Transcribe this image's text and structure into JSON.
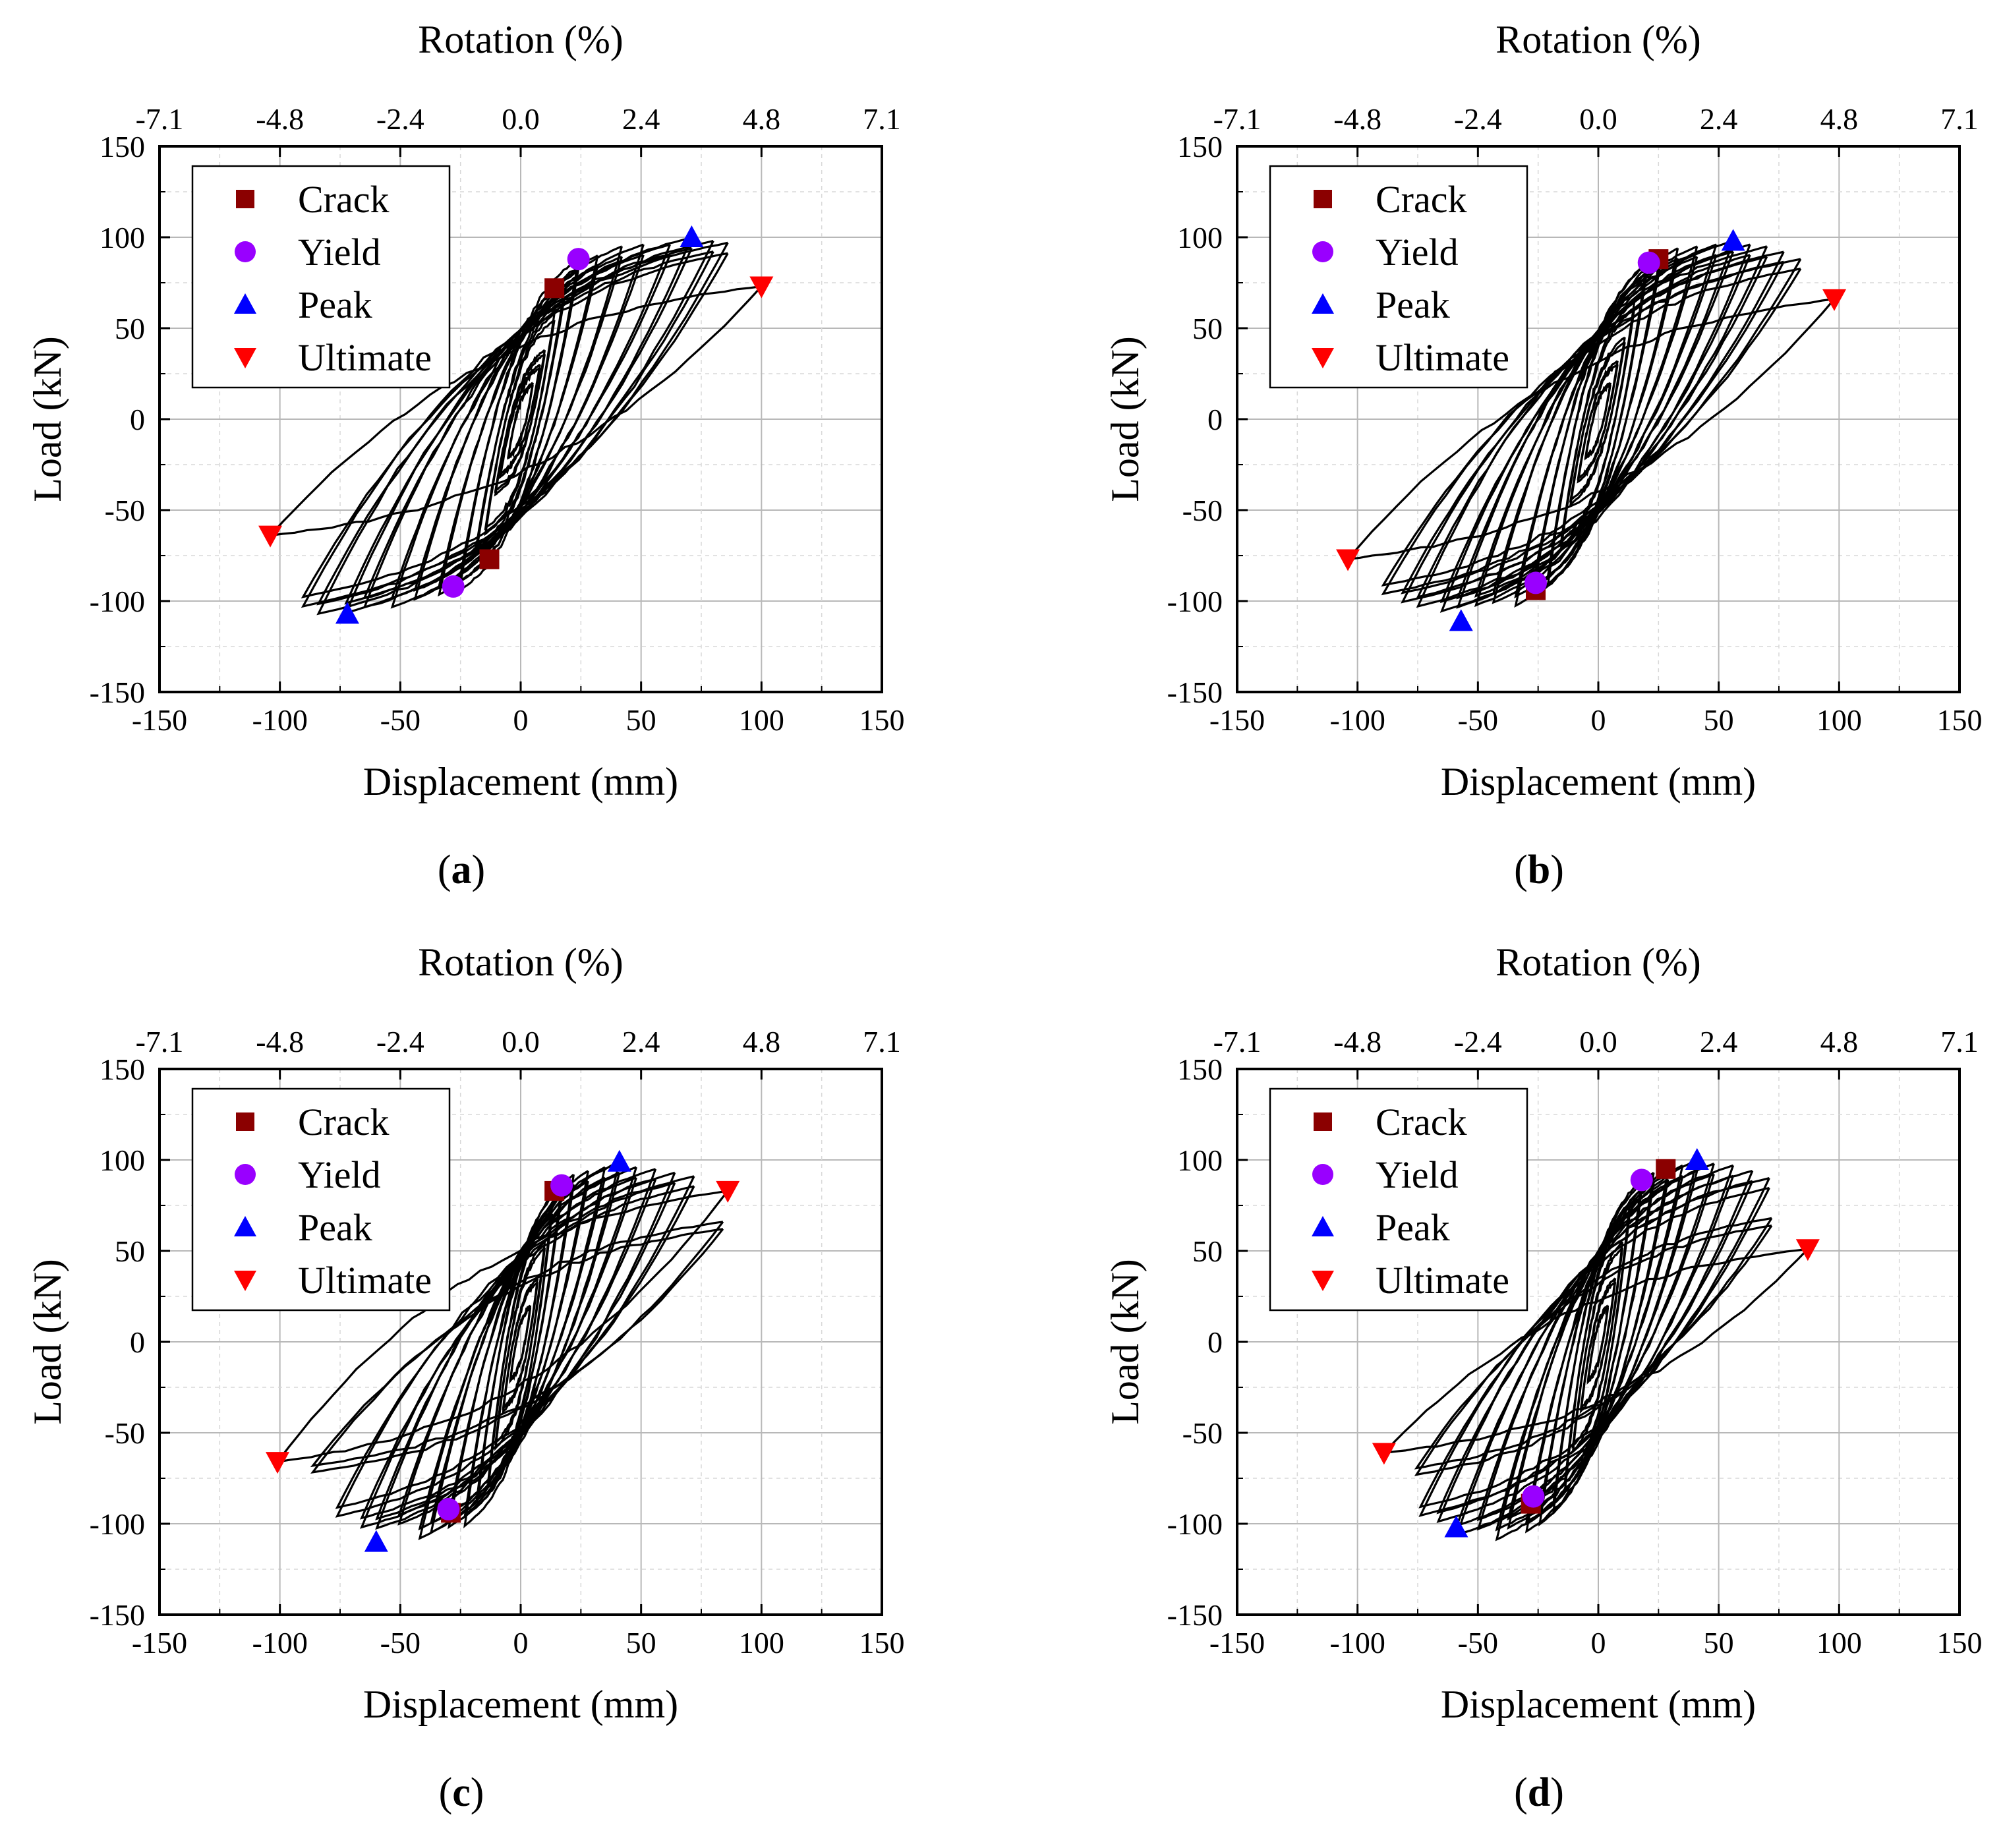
{
  "figure": {
    "panels": [
      {
        "id": "a",
        "label_open": "(",
        "label_letter": "a",
        "label_close": ")"
      },
      {
        "id": "b",
        "label_open": "(",
        "label_letter": "b",
        "label_close": ")"
      },
      {
        "id": "c",
        "label_open": "(",
        "label_letter": "c",
        "label_close": ")"
      },
      {
        "id": "d",
        "label_open": "(",
        "label_letter": "d",
        "label_close": ")"
      }
    ]
  },
  "chart_data": [
    {
      "type": "line",
      "panel": "a",
      "xlabel": "Displacement (mm)",
      "ylabel": "Load (kN)",
      "x2label": "Rotation (%)",
      "xlim": [
        -150,
        150
      ],
      "ylim": [
        -150,
        150
      ],
      "xticks": [
        "-150",
        "-100",
        "-50",
        "0",
        "50",
        "100",
        "150"
      ],
      "yticks": [
        "150",
        "100",
        "50",
        "0",
        "-50",
        "-100",
        "-150"
      ],
      "x2ticks": [
        "-7.1",
        "-4.8",
        "-2.4",
        "0.0",
        "2.4",
        "4.8",
        "7.1"
      ],
      "legend": [
        "Crack",
        "Yield",
        "Peak",
        "Ultimate"
      ],
      "colors": {
        "crack": "#8b0000",
        "yield": "#9900ff",
        "peak": "#0000ff",
        "ultimate": "#ff0000",
        "curve": "#000000"
      },
      "markers": {
        "crack": [
          [
            14,
            72
          ],
          [
            -13,
            -77
          ]
        ],
        "yield": [
          [
            24,
            88
          ],
          [
            -28,
            -92
          ]
        ],
        "peak": [
          [
            71,
            100
          ],
          [
            -72,
            -107
          ]
        ],
        "ultimate": [
          [
            100,
            73
          ],
          [
            -104,
            -64
          ]
        ]
      },
      "amplitudes": [
        [
          5,
          20
        ],
        [
          8,
          30
        ],
        [
          10,
          38
        ],
        [
          14,
          58
        ],
        [
          18,
          70
        ],
        [
          24,
          88
        ],
        [
          32,
          90
        ],
        [
          42,
          95
        ],
        [
          51,
          96
        ],
        [
          62,
          96
        ],
        [
          71,
          100
        ],
        [
          80,
          98
        ],
        [
          86,
          97
        ]
      ],
      "last_cycle": [
        [
          100,
          73
        ],
        [
          -104,
          -64
        ]
      ]
    },
    {
      "type": "line",
      "panel": "b",
      "xlabel": "Displacement (mm)",
      "ylabel": "Load (kN)",
      "x2label": "Rotation (%)",
      "xlim": [
        -150,
        150
      ],
      "ylim": [
        -150,
        150
      ],
      "xticks": [
        "-150",
        "-100",
        "-50",
        "0",
        "50",
        "100",
        "150"
      ],
      "yticks": [
        "150",
        "100",
        "50",
        "0",
        "-50",
        "-100",
        "-150"
      ],
      "x2ticks": [
        "-7.1",
        "-4.8",
        "-2.4",
        "0.0",
        "2.4",
        "4.8",
        "7.1"
      ],
      "legend": [
        "Crack",
        "Yield",
        "Peak",
        "Ultimate"
      ],
      "colors": {
        "crack": "#8b0000",
        "yield": "#9900ff",
        "peak": "#0000ff",
        "ultimate": "#ff0000",
        "curve": "#000000"
      },
      "markers": {
        "crack": [
          [
            25,
            88
          ],
          [
            -26,
            -94
          ]
        ],
        "yield": [
          [
            21,
            86
          ],
          [
            -26,
            -90
          ]
        ],
        "peak": [
          [
            56,
            98
          ],
          [
            -57,
            -111
          ]
        ],
        "ultimate": [
          [
            98,
            66
          ],
          [
            -104,
            -77
          ]
        ]
      },
      "amplitudes": [
        [
          5,
          20
        ],
        [
          8,
          32
        ],
        [
          11,
          45
        ],
        [
          15,
          65
        ],
        [
          20,
          85
        ],
        [
          26,
          92
        ],
        [
          33,
          94
        ],
        [
          41,
          95
        ],
        [
          49,
          96
        ],
        [
          56,
          98
        ],
        [
          63,
          96
        ],
        [
          70,
          95
        ],
        [
          77,
          92
        ],
        [
          84,
          88
        ]
      ],
      "last_cycle": [
        [
          98,
          66
        ],
        [
          -104,
          -77
        ]
      ]
    },
    {
      "type": "line",
      "panel": "c",
      "xlabel": "Displacement (mm)",
      "ylabel": "Load (kN)",
      "x2label": "Rotation (%)",
      "xlim": [
        -150,
        150
      ],
      "ylim": [
        -150,
        150
      ],
      "xticks": [
        "-150",
        "-100",
        "-50",
        "0",
        "50",
        "100",
        "150"
      ],
      "yticks": [
        "150",
        "100",
        "50",
        "0",
        "-50",
        "-100",
        "-150"
      ],
      "x2ticks": [
        "-7.1",
        "-4.8",
        "-2.4",
        "0.0",
        "2.4",
        "4.8",
        "7.1"
      ],
      "legend": [
        "Crack",
        "Yield",
        "Peak",
        "Ultimate"
      ],
      "colors": {
        "crack": "#8b0000",
        "yield": "#9900ff",
        "peak": "#0000ff",
        "ultimate": "#ff0000",
        "curve": "#000000"
      },
      "markers": {
        "crack": [
          [
            14,
            83
          ],
          [
            -29,
            -94
          ]
        ],
        "yield": [
          [
            17,
            86
          ],
          [
            -30,
            -92
          ]
        ],
        "peak": [
          [
            41,
            99
          ],
          [
            -60,
            -110
          ]
        ],
        "ultimate": [
          [
            86,
            83
          ],
          [
            -101,
            -66
          ]
        ]
      },
      "amplitudes": [
        [
          4,
          20
        ],
        [
          7,
          35
        ],
        [
          10,
          55
        ],
        [
          13,
          75
        ],
        [
          17,
          86
        ],
        [
          22,
          92
        ],
        [
          28,
          94
        ],
        [
          35,
          96
        ],
        [
          41,
          99
        ],
        [
          48,
          96
        ],
        [
          56,
          95
        ],
        [
          64,
          93
        ],
        [
          72,
          91
        ],
        [
          84,
          66
        ]
      ],
      "last_cycle": [
        [
          86,
          83
        ],
        [
          -101,
          -66
        ]
      ]
    },
    {
      "type": "line",
      "panel": "d",
      "xlabel": "Displacement (mm)",
      "ylabel": "Load (kN)",
      "x2label": "Rotation (%)",
      "xlim": [
        -150,
        150
      ],
      "ylim": [
        -150,
        150
      ],
      "xticks": [
        "-150",
        "-100",
        "-50",
        "0",
        "50",
        "100",
        "150"
      ],
      "yticks": [
        "150",
        "100",
        "50",
        "0",
        "-50",
        "-100",
        "-150"
      ],
      "x2ticks": [
        "-7.1",
        "-4.8",
        "-2.4",
        "0.0",
        "2.4",
        "4.8",
        "7.1"
      ],
      "legend": [
        "Crack",
        "Yield",
        "Peak",
        "Ultimate"
      ],
      "colors": {
        "crack": "#8b0000",
        "yield": "#9900ff",
        "peak": "#0000ff",
        "ultimate": "#ff0000",
        "curve": "#000000"
      },
      "markers": {
        "crack": [
          [
            28,
            95
          ],
          [
            -28,
            -89
          ]
        ],
        "yield": [
          [
            18,
            89
          ],
          [
            -27,
            -85
          ]
        ],
        "peak": [
          [
            41,
            100
          ],
          [
            -59,
            -102
          ]
        ],
        "ultimate": [
          [
            87,
            51
          ],
          [
            -89,
            -61
          ]
        ]
      },
      "amplitudes": [
        [
          4,
          20
        ],
        [
          7,
          35
        ],
        [
          10,
          55
        ],
        [
          13,
          75
        ],
        [
          18,
          89
        ],
        [
          23,
          93
        ],
        [
          29,
          95
        ],
        [
          35,
          97
        ],
        [
          41,
          100
        ],
        [
          48,
          98
        ],
        [
          56,
          97
        ],
        [
          64,
          94
        ],
        [
          71,
          90
        ],
        [
          72,
          68
        ]
      ],
      "last_cycle": [
        [
          87,
          51
        ],
        [
          -89,
          -61
        ]
      ]
    }
  ]
}
